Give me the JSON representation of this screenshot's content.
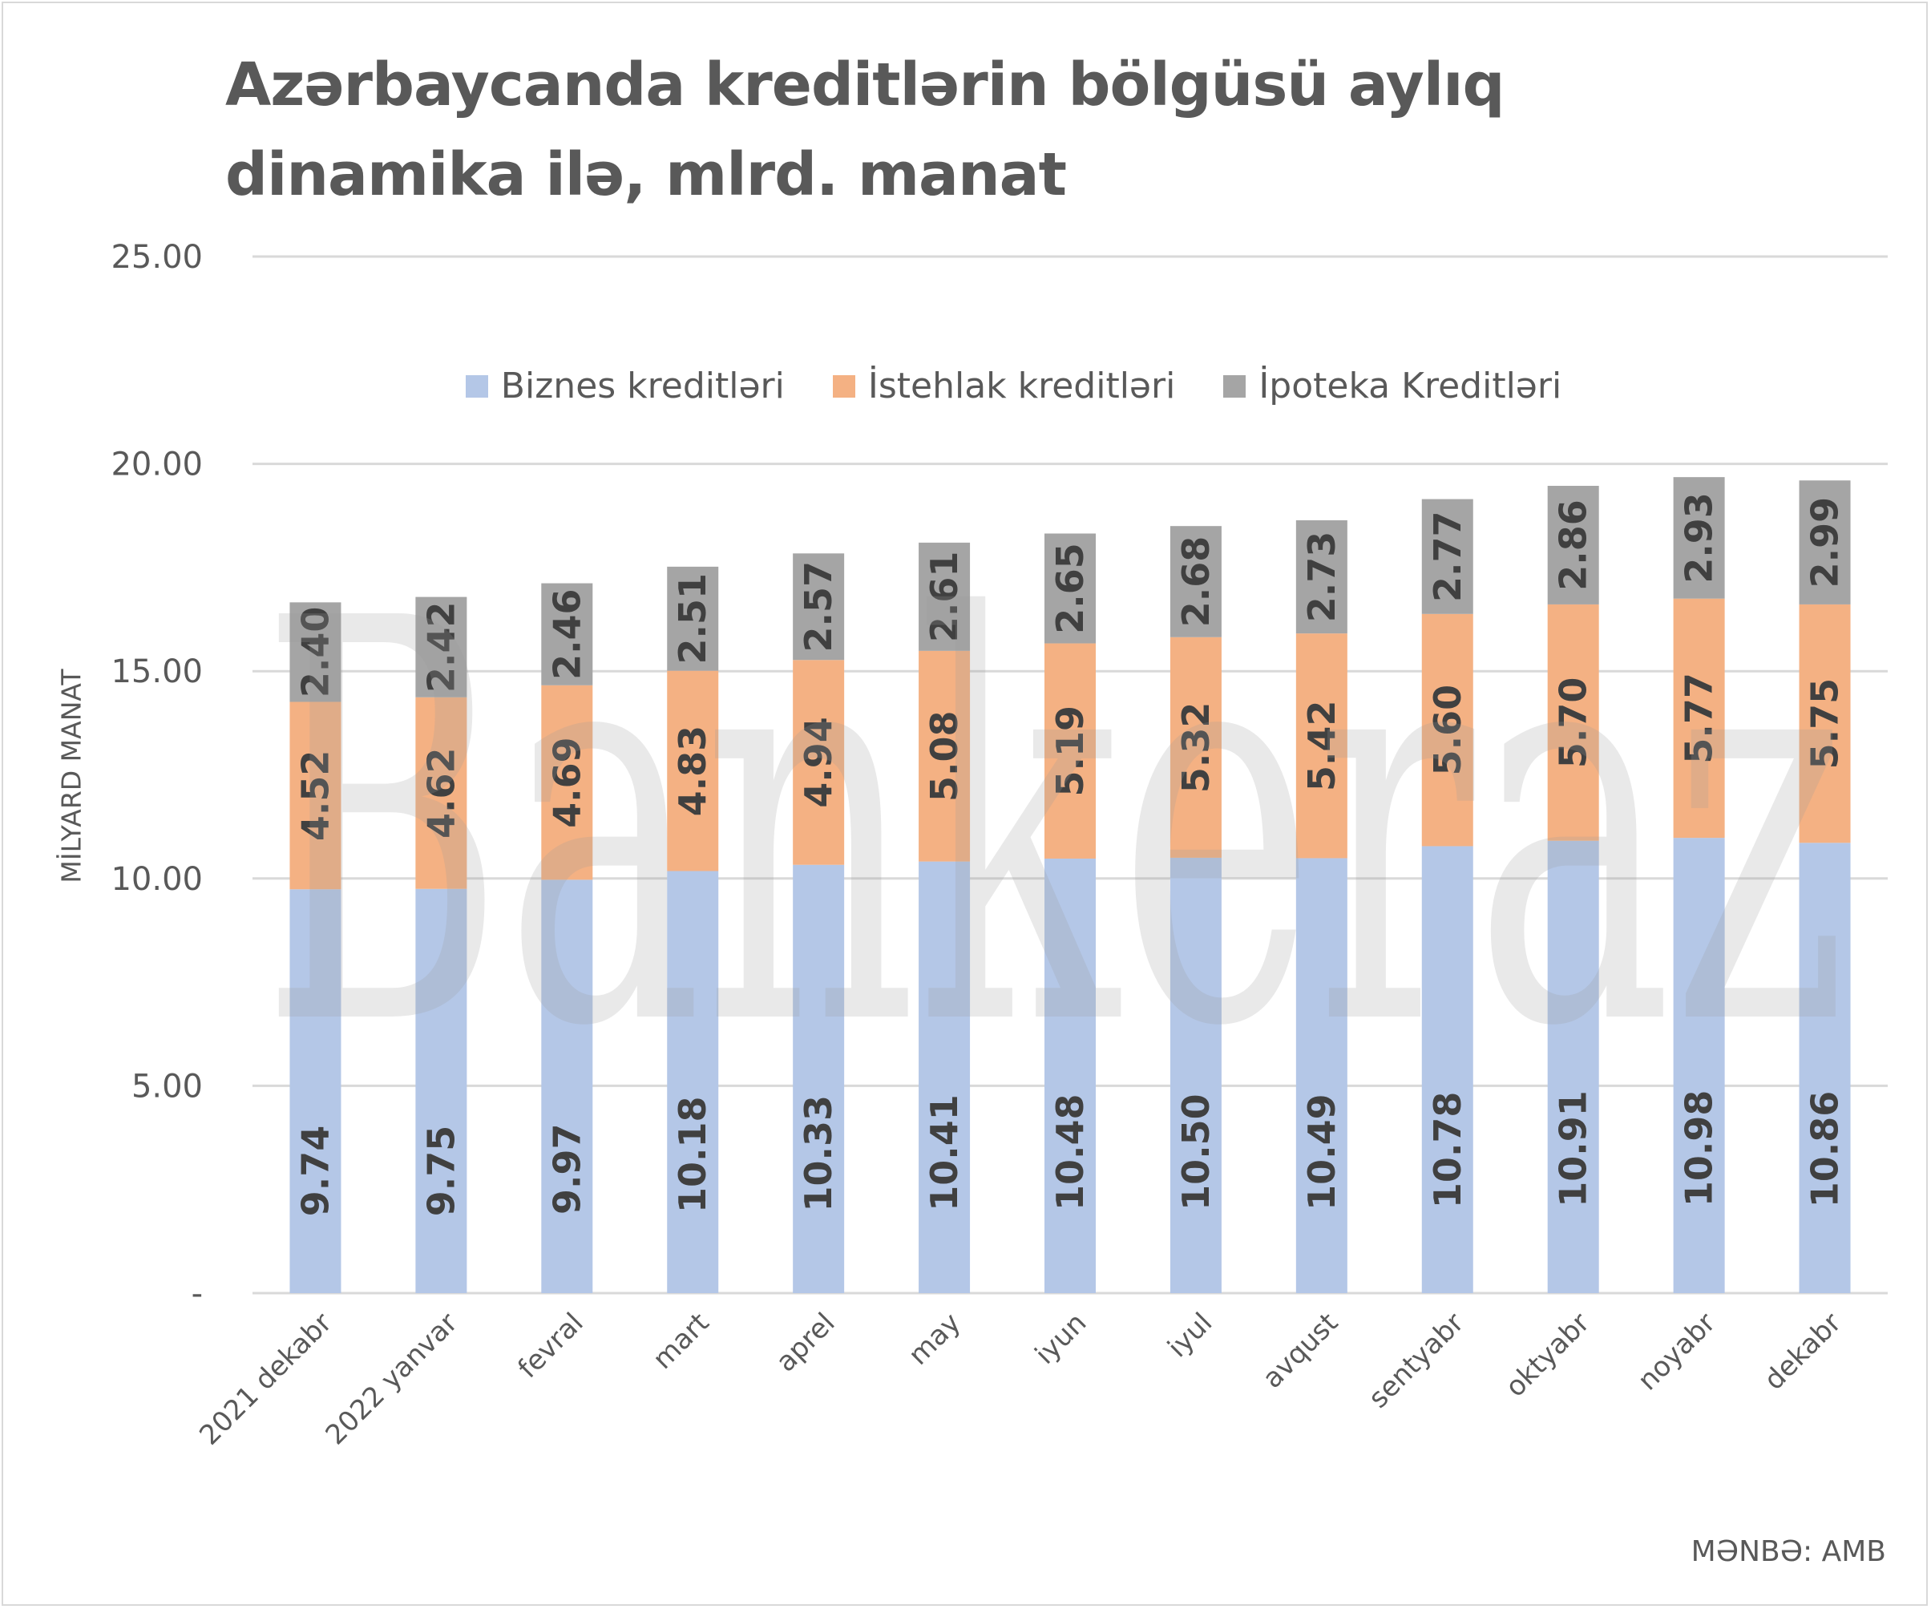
{
  "title": "Azərbaycanda kreditlərin bölgüsü aylıq dinamika ilə, mlrd. manat",
  "source": "MƏNBƏ: AMB",
  "watermark": "Bankeraz",
  "chart_data": {
    "type": "bar",
    "stacked": true,
    "title": "Azərbaycanda kreditlərin bölgüsü aylıq dinamika ilə, mlrd. manat",
    "xlabel": "",
    "ylabel": "MİLYARD MANAT",
    "ylim": [
      0,
      25
    ],
    "yticks": [
      "-",
      "5.00",
      "10.00",
      "15.00",
      "20.00",
      "25.00"
    ],
    "grid": true,
    "legend_position": "top-center",
    "categories": [
      "2021 dekabr",
      "2022 yanvar",
      "fevral",
      "mart",
      "aprel",
      "may",
      "iyun",
      "iyul",
      "avqust",
      "sentyabr",
      "oktyabr",
      "noyabr",
      "dekabr"
    ],
    "series": [
      {
        "name": "Biznes kreditləri",
        "color": "#b4c7e7",
        "values": [
          9.74,
          9.75,
          9.97,
          10.18,
          10.33,
          10.41,
          10.48,
          10.5,
          10.49,
          10.78,
          10.91,
          10.98,
          10.86
        ]
      },
      {
        "name": "İstehlak kreditləri",
        "color": "#f4b183",
        "values": [
          4.52,
          4.62,
          4.69,
          4.83,
          4.94,
          5.08,
          5.19,
          5.32,
          5.42,
          5.6,
          5.7,
          5.77,
          5.75
        ]
      },
      {
        "name": "İpoteka Kreditləri",
        "color": "#a5a5a5",
        "values": [
          2.4,
          2.42,
          2.46,
          2.51,
          2.57,
          2.61,
          2.65,
          2.68,
          2.73,
          2.77,
          2.86,
          2.93,
          2.99
        ]
      }
    ]
  }
}
